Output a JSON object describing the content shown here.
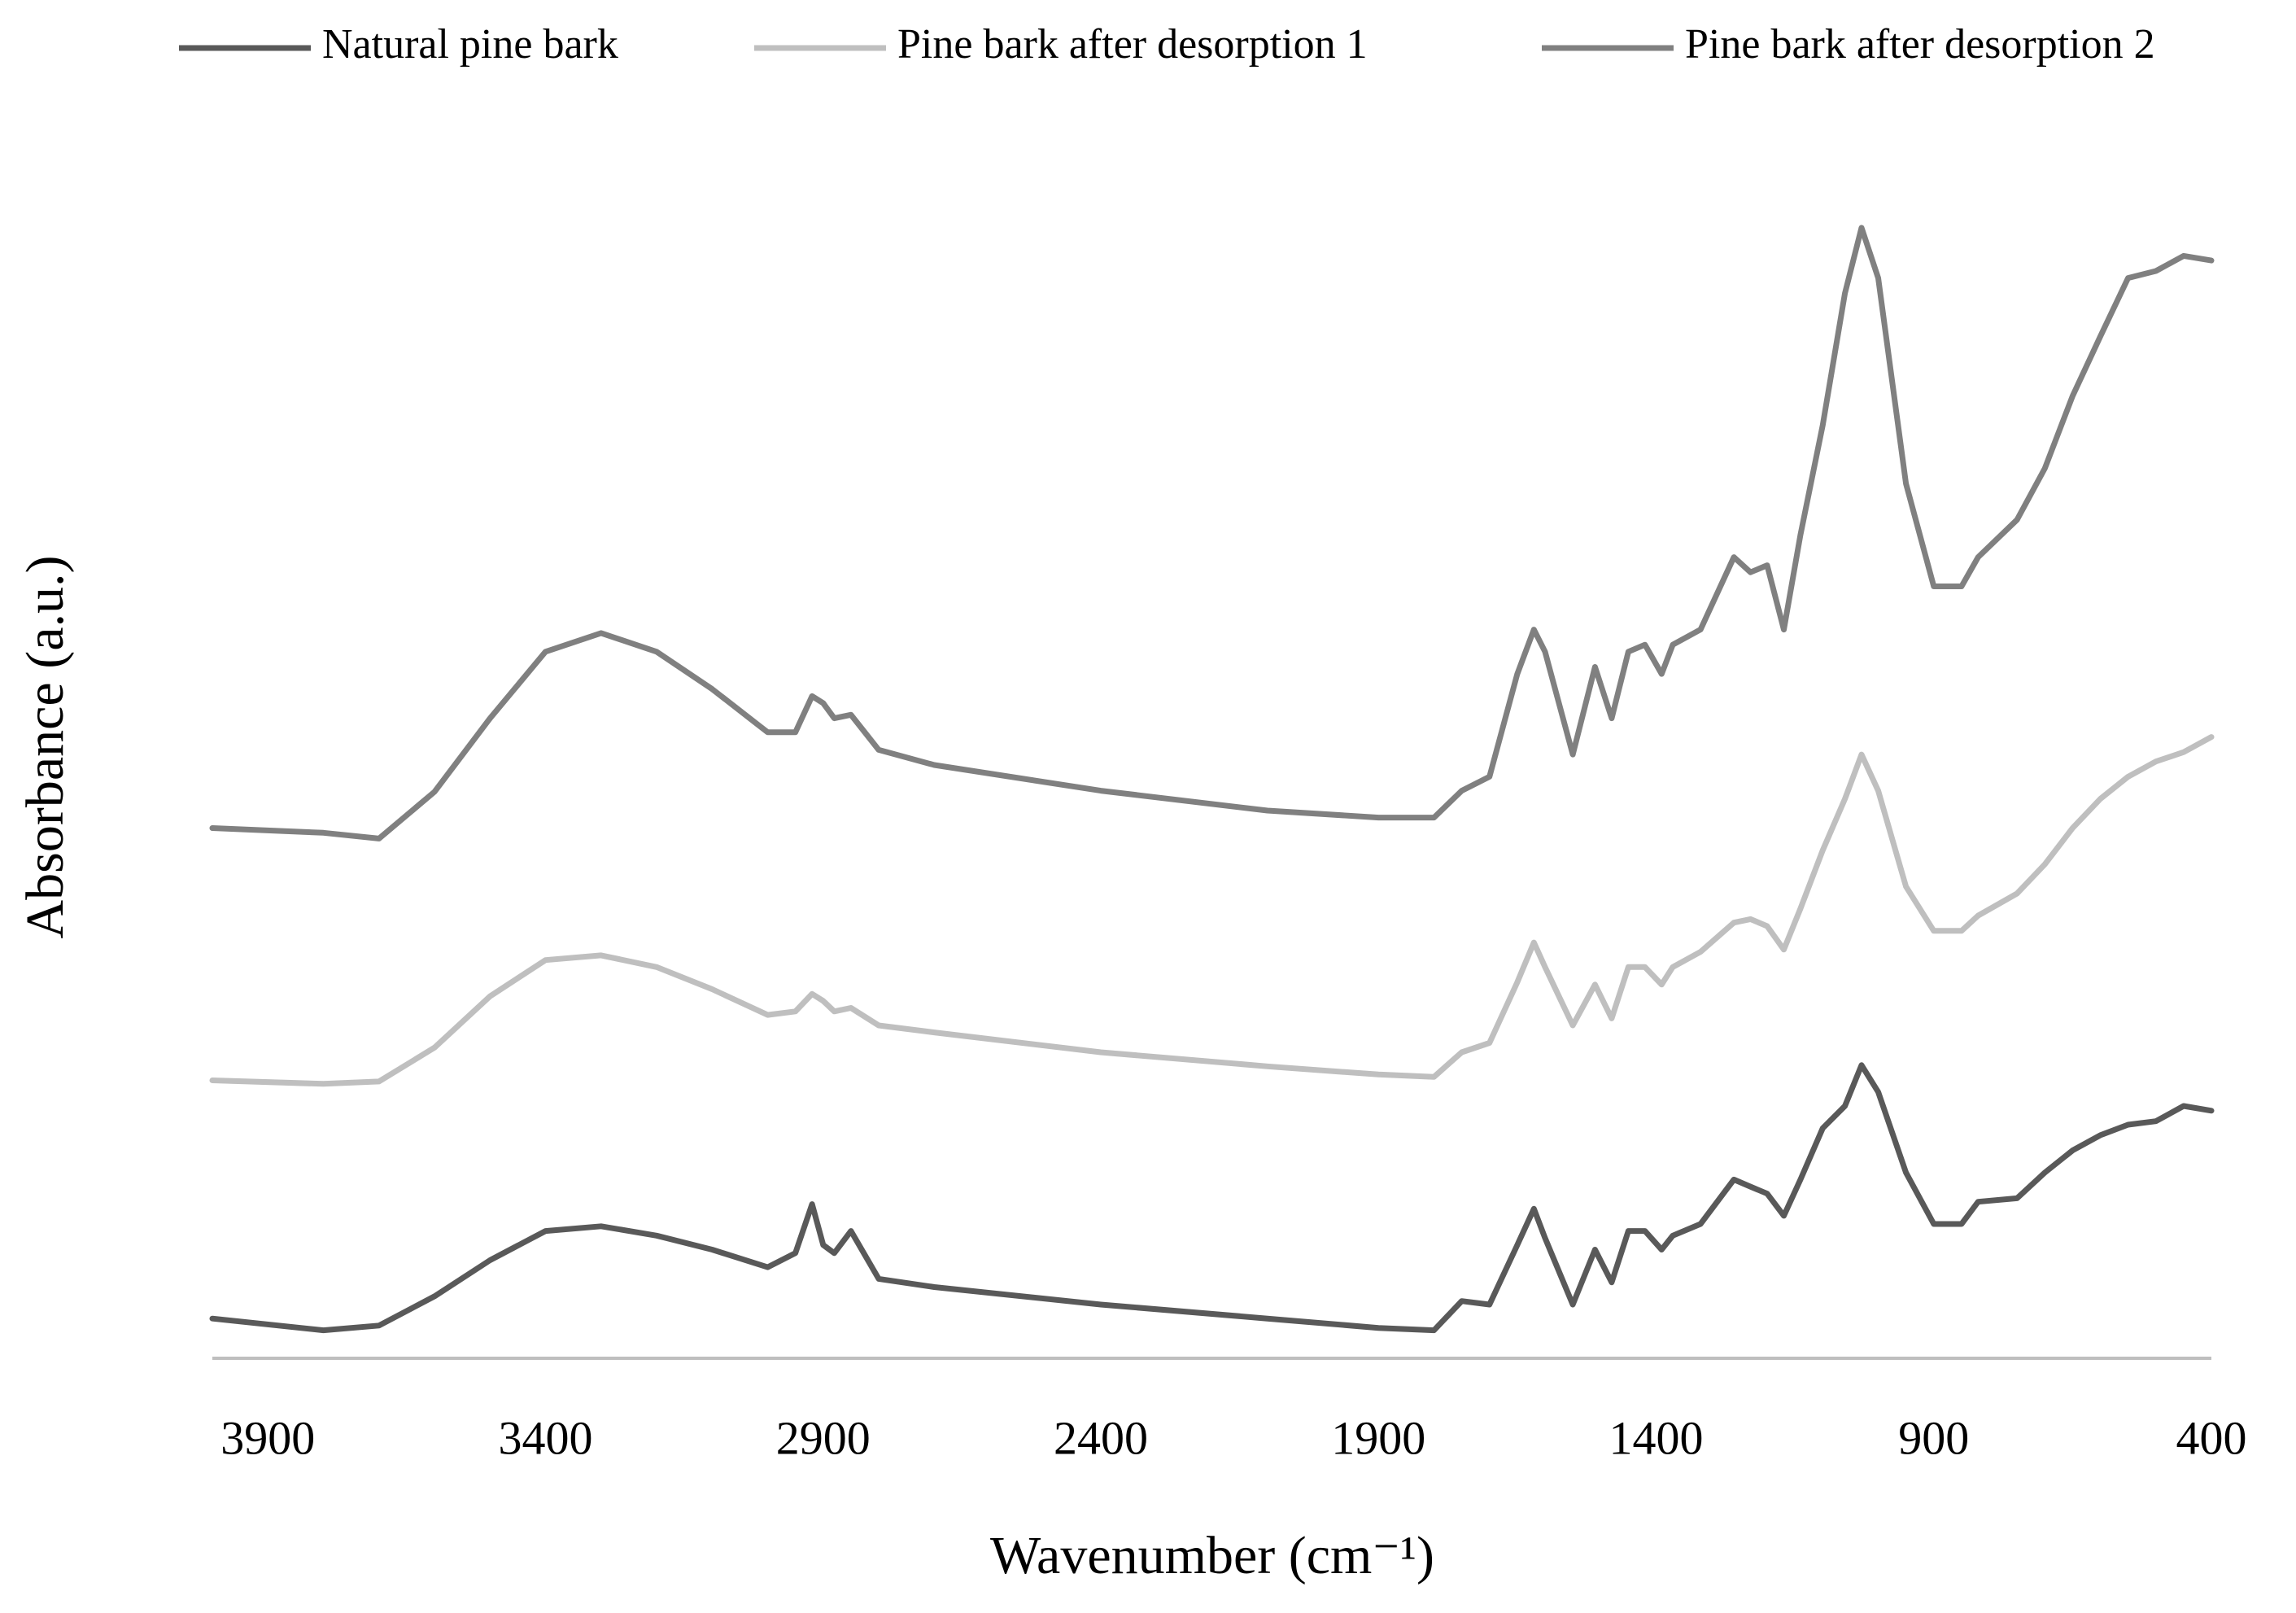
{
  "chart_data": {
    "type": "line",
    "x_label": "Wavenumber (cm⁻¹)",
    "y_label": "Absorbance (a.u.)",
    "x": [
      4000,
      3800,
      3700,
      3600,
      3500,
      3400,
      3300,
      3200,
      3100,
      3000,
      2950,
      2920,
      2900,
      2880,
      2850,
      2800,
      2700,
      2400,
      2100,
      1900,
      1800,
      1750,
      1700,
      1650,
      1620,
      1600,
      1550,
      1510,
      1480,
      1450,
      1420,
      1390,
      1370,
      1320,
      1260,
      1230,
      1200,
      1170,
      1140,
      1100,
      1060,
      1030,
      1000,
      950,
      900,
      850,
      820,
      750,
      700,
      650,
      600,
      550,
      500,
      450,
      400
    ],
    "series": [
      {
        "name": "Natural pine bark",
        "color": "#595959",
        "values": [
          3.4,
          2.4,
          2.8,
          5.3,
          8.4,
          10.9,
          11.3,
          10.5,
          9.3,
          7.8,
          9.0,
          13.2,
          9.7,
          9.0,
          10.9,
          6.8,
          6.1,
          4.6,
          3.4,
          2.6,
          2.4,
          4.9,
          4.6,
          9.7,
          12.8,
          10.3,
          4.6,
          9.3,
          6.5,
          10.9,
          10.9,
          9.3,
          10.5,
          11.5,
          15.3,
          14.7,
          14.1,
          12.2,
          15.3,
          19.7,
          21.6,
          25.1,
          22.8,
          15.9,
          11.5,
          11.5,
          13.4,
          13.7,
          15.9,
          17.8,
          19.1,
          20.0,
          20.3,
          21.6,
          21.2
        ]
      },
      {
        "name": "Pine bark after desorption 1",
        "color": "#bfbfbf",
        "values": [
          23.8,
          23.5,
          23.7,
          26.6,
          31.0,
          34.1,
          34.5,
          33.5,
          31.6,
          29.4,
          29.7,
          31.2,
          30.6,
          29.7,
          30.0,
          28.5,
          27.9,
          26.2,
          25.0,
          24.3,
          24.1,
          26.2,
          27.0,
          32.2,
          35.6,
          33.5,
          28.5,
          32.0,
          29.1,
          33.5,
          33.5,
          32.0,
          33.5,
          34.8,
          37.3,
          37.6,
          37.0,
          35.0,
          38.5,
          43.5,
          47.9,
          51.7,
          48.6,
          40.4,
          36.6,
          36.6,
          37.9,
          39.8,
          42.3,
          45.4,
          47.9,
          49.8,
          51.1,
          51.9,
          53.2
        ]
      },
      {
        "name": "Pine bark after desorption 2",
        "color": "#808080",
        "values": [
          45.4,
          45.0,
          44.5,
          48.5,
          54.8,
          60.5,
          62.1,
          60.5,
          57.3,
          53.6,
          53.6,
          56.7,
          56.1,
          54.8,
          55.1,
          52.1,
          50.8,
          48.6,
          46.9,
          46.3,
          46.3,
          48.6,
          49.8,
          58.6,
          62.4,
          60.5,
          51.7,
          59.2,
          54.8,
          60.5,
          61.1,
          58.6,
          61.1,
          62.4,
          68.6,
          67.3,
          67.9,
          62.4,
          70.5,
          79.9,
          91.2,
          96.8,
          92.5,
          74.9,
          66.1,
          66.1,
          68.6,
          71.8,
          76.2,
          82.4,
          87.5,
          92.5,
          93.1,
          94.4,
          94.0
        ]
      }
    ],
    "xlim": [
      4000,
      400
    ],
    "xticks": [
      3900,
      3400,
      2900,
      2400,
      1900,
      1400,
      900,
      400
    ],
    "ylim": [
      0,
      100
    ],
    "grid": false,
    "legend": "top"
  }
}
